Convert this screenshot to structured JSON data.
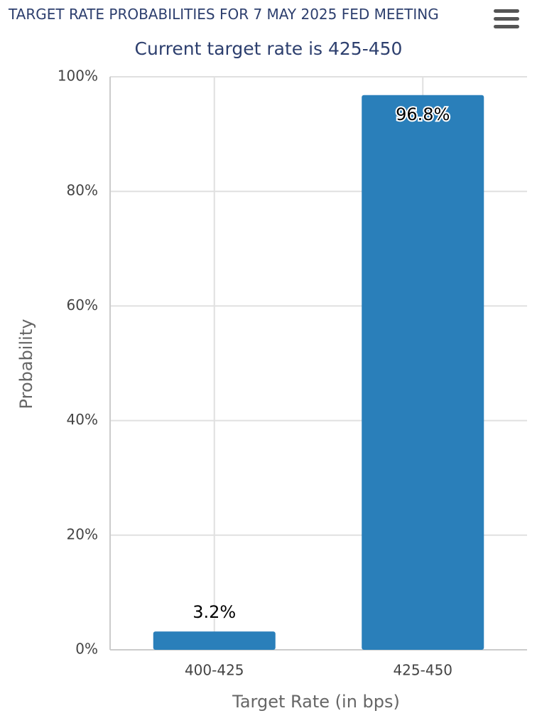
{
  "chart_data": {
    "type": "bar",
    "title": "TARGET RATE PROBABILITIES FOR 7 MAY 2025 FED MEETING",
    "subtitle": "Current target rate is 425-450",
    "categories": [
      "400-425",
      "425-450"
    ],
    "values": [
      3.2,
      96.8
    ],
    "value_labels": [
      "3.2%",
      "96.8%"
    ],
    "color": "#2a7fba",
    "x_label": "Target Rate (in bps)",
    "y_label": "Probability",
    "ylim": [
      0,
      100
    ],
    "yticks": [
      {
        "value": 0,
        "label": "0%"
      },
      {
        "value": 20,
        "label": "20%"
      },
      {
        "value": 40,
        "label": "40%"
      },
      {
        "value": 60,
        "label": "60%"
      },
      {
        "value": 80,
        "label": "80%"
      },
      {
        "value": 100,
        "label": "100%"
      }
    ],
    "grid": true
  }
}
